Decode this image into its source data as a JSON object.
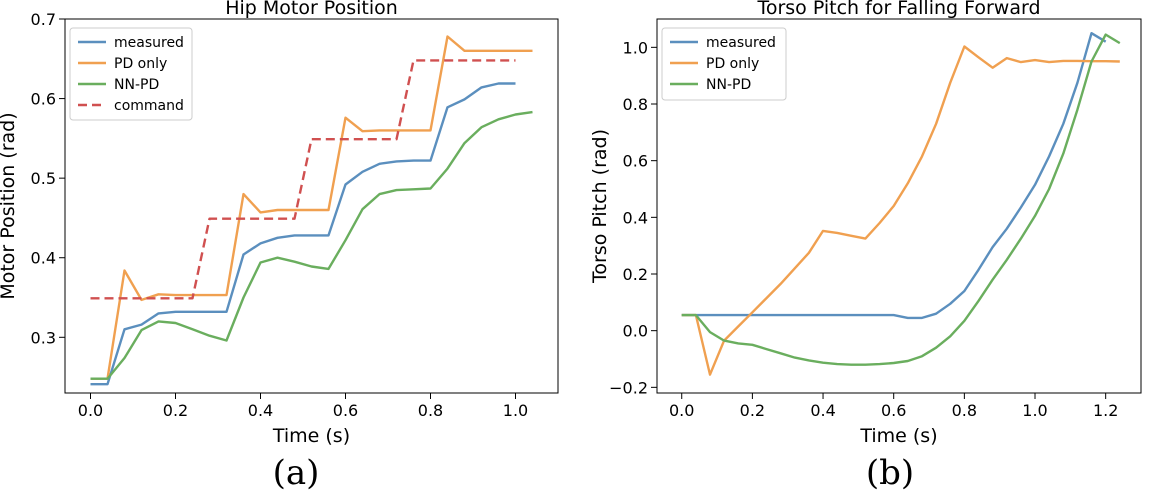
{
  "panels": [
    "(a)",
    "(b)"
  ],
  "colors": {
    "measured": "#5b8fbe",
    "pd_only": "#f0a050",
    "nn_pd": "#6aae5e",
    "command": "#d05050"
  },
  "chart_data": [
    {
      "type": "line",
      "title": "Hip Motor Position",
      "xlabel": "Time (s)",
      "ylabel": "Motor Position (rad)",
      "xlim": [
        -0.06,
        1.1
      ],
      "ylim": [
        0.23,
        0.7
      ],
      "xticks": [
        0.0,
        0.2,
        0.4,
        0.6,
        0.8,
        1.0
      ],
      "xtick_labels": [
        "0.0",
        "0.2",
        "0.4",
        "0.6",
        "0.8",
        "1.0"
      ],
      "yticks": [
        0.3,
        0.4,
        0.5,
        0.6,
        0.7
      ],
      "ytick_labels": [
        "0.3",
        "0.4",
        "0.5",
        "0.6",
        "0.7"
      ],
      "legend": "top-left",
      "grid": false,
      "series": [
        {
          "name": "measured",
          "color": "#5b8fbe",
          "dash": "solid",
          "x": [
            0.0,
            0.04,
            0.08,
            0.12,
            0.16,
            0.2,
            0.24,
            0.28,
            0.32,
            0.36,
            0.4,
            0.44,
            0.48,
            0.52,
            0.56,
            0.6,
            0.64,
            0.68,
            0.72,
            0.76,
            0.8,
            0.84,
            0.88,
            0.92,
            0.96,
            1.0
          ],
          "y": [
            0.241,
            0.241,
            0.31,
            0.316,
            0.33,
            0.332,
            0.332,
            0.332,
            0.332,
            0.404,
            0.418,
            0.425,
            0.428,
            0.428,
            0.428,
            0.492,
            0.508,
            0.518,
            0.521,
            0.522,
            0.522,
            0.589,
            0.599,
            0.614,
            0.619,
            0.619
          ]
        },
        {
          "name": "PD only",
          "color": "#f0a050",
          "dash": "solid",
          "x": [
            0.0,
            0.04,
            0.08,
            0.12,
            0.16,
            0.2,
            0.24,
            0.28,
            0.32,
            0.36,
            0.4,
            0.44,
            0.48,
            0.52,
            0.56,
            0.6,
            0.64,
            0.68,
            0.72,
            0.76,
            0.8,
            0.84,
            0.88,
            0.92,
            0.96,
            1.0,
            1.04
          ],
          "y": [
            0.248,
            0.248,
            0.384,
            0.347,
            0.354,
            0.353,
            0.353,
            0.353,
            0.353,
            0.48,
            0.457,
            0.46,
            0.46,
            0.46,
            0.46,
            0.576,
            0.559,
            0.56,
            0.56,
            0.56,
            0.56,
            0.678,
            0.66,
            0.66,
            0.66,
            0.66,
            0.66
          ]
        },
        {
          "name": "NN-PD",
          "color": "#6aae5e",
          "dash": "solid",
          "x": [
            0.0,
            0.04,
            0.08,
            0.12,
            0.16,
            0.2,
            0.24,
            0.28,
            0.32,
            0.36,
            0.4,
            0.44,
            0.48,
            0.52,
            0.56,
            0.6,
            0.64,
            0.68,
            0.72,
            0.76,
            0.8,
            0.84,
            0.88,
            0.92,
            0.96,
            1.0,
            1.04
          ],
          "y": [
            0.248,
            0.248,
            0.274,
            0.309,
            0.32,
            0.318,
            0.31,
            0.302,
            0.296,
            0.35,
            0.394,
            0.4,
            0.395,
            0.389,
            0.386,
            0.422,
            0.461,
            0.48,
            0.485,
            0.486,
            0.487,
            0.512,
            0.544,
            0.564,
            0.574,
            0.58,
            0.583
          ]
        },
        {
          "name": "command",
          "color": "#d05050",
          "dash": "dashed",
          "x": [
            0.0,
            0.24,
            0.24,
            0.28,
            0.28,
            0.48,
            0.48,
            0.52,
            0.52,
            0.72,
            0.72,
            0.76,
            0.76,
            1.0
          ],
          "y": [
            0.349,
            0.349,
            0.349,
            0.449,
            0.449,
            0.449,
            0.449,
            0.549,
            0.549,
            0.549,
            0.549,
            0.648,
            0.648,
            0.648
          ]
        }
      ]
    },
    {
      "type": "line",
      "title": "Torso Pitch for Falling Forward",
      "xlabel": "Time (s)",
      "ylabel": "Torso Pitch (rad)",
      "xlim": [
        -0.07,
        1.3
      ],
      "ylim": [
        -0.22,
        1.1
      ],
      "xticks": [
        0.0,
        0.2,
        0.4,
        0.6,
        0.8,
        1.0,
        1.2
      ],
      "xtick_labels": [
        "0.0",
        "0.2",
        "0.4",
        "0.6",
        "0.8",
        "1.0",
        "1.2"
      ],
      "yticks": [
        -0.2,
        0.0,
        0.2,
        0.4,
        0.6,
        0.8,
        1.0
      ],
      "ytick_labels": [
        "−0.2",
        "0.0",
        "0.2",
        "0.4",
        "0.6",
        "0.8",
        "1.0"
      ],
      "legend": "top-left",
      "grid": false,
      "series": [
        {
          "name": "measured",
          "color": "#5b8fbe",
          "dash": "solid",
          "x": [
            0.0,
            0.04,
            0.08,
            0.12,
            0.2,
            0.3,
            0.4,
            0.5,
            0.6,
            0.64,
            0.68,
            0.72,
            0.76,
            0.8,
            0.84,
            0.88,
            0.92,
            0.96,
            1.0,
            1.04,
            1.08,
            1.12,
            1.16,
            1.2
          ],
          "y": [
            0.055,
            0.055,
            0.055,
            0.055,
            0.055,
            0.055,
            0.055,
            0.055,
            0.055,
            0.045,
            0.045,
            0.06,
            0.095,
            0.14,
            0.215,
            0.295,
            0.36,
            0.435,
            0.515,
            0.615,
            0.73,
            0.875,
            1.05,
            1.02
          ]
        },
        {
          "name": "PD only",
          "color": "#f0a050",
          "dash": "solid",
          "x": [
            0.0,
            0.04,
            0.08,
            0.12,
            0.16,
            0.2,
            0.24,
            0.28,
            0.32,
            0.36,
            0.4,
            0.44,
            0.48,
            0.52,
            0.56,
            0.6,
            0.64,
            0.68,
            0.72,
            0.76,
            0.8,
            0.84,
            0.88,
            0.92,
            0.96,
            1.0,
            1.04,
            1.08,
            1.12,
            1.16,
            1.2,
            1.24
          ],
          "y": [
            0.055,
            0.055,
            -0.155,
            -0.035,
            0.015,
            0.065,
            0.115,
            0.165,
            0.22,
            0.275,
            0.352,
            0.345,
            0.335,
            0.325,
            0.38,
            0.44,
            0.52,
            0.615,
            0.73,
            0.875,
            1.003,
            0.965,
            0.928,
            0.962,
            0.948,
            0.955,
            0.948,
            0.952,
            0.952,
            0.951,
            0.951,
            0.95
          ]
        },
        {
          "name": "NN-PD",
          "color": "#6aae5e",
          "dash": "solid",
          "x": [
            0.0,
            0.04,
            0.08,
            0.12,
            0.16,
            0.2,
            0.24,
            0.28,
            0.32,
            0.36,
            0.4,
            0.44,
            0.48,
            0.52,
            0.56,
            0.6,
            0.64,
            0.68,
            0.72,
            0.76,
            0.8,
            0.84,
            0.88,
            0.92,
            0.96,
            1.0,
            1.04,
            1.08,
            1.12,
            1.16,
            1.2,
            1.24
          ],
          "y": [
            0.055,
            0.055,
            -0.005,
            -0.035,
            -0.045,
            -0.05,
            -0.065,
            -0.08,
            -0.095,
            -0.105,
            -0.113,
            -0.118,
            -0.12,
            -0.12,
            -0.118,
            -0.114,
            -0.107,
            -0.09,
            -0.06,
            -0.02,
            0.035,
            0.105,
            0.18,
            0.25,
            0.325,
            0.405,
            0.5,
            0.625,
            0.78,
            0.95,
            1.045,
            1.015
          ]
        }
      ]
    }
  ]
}
